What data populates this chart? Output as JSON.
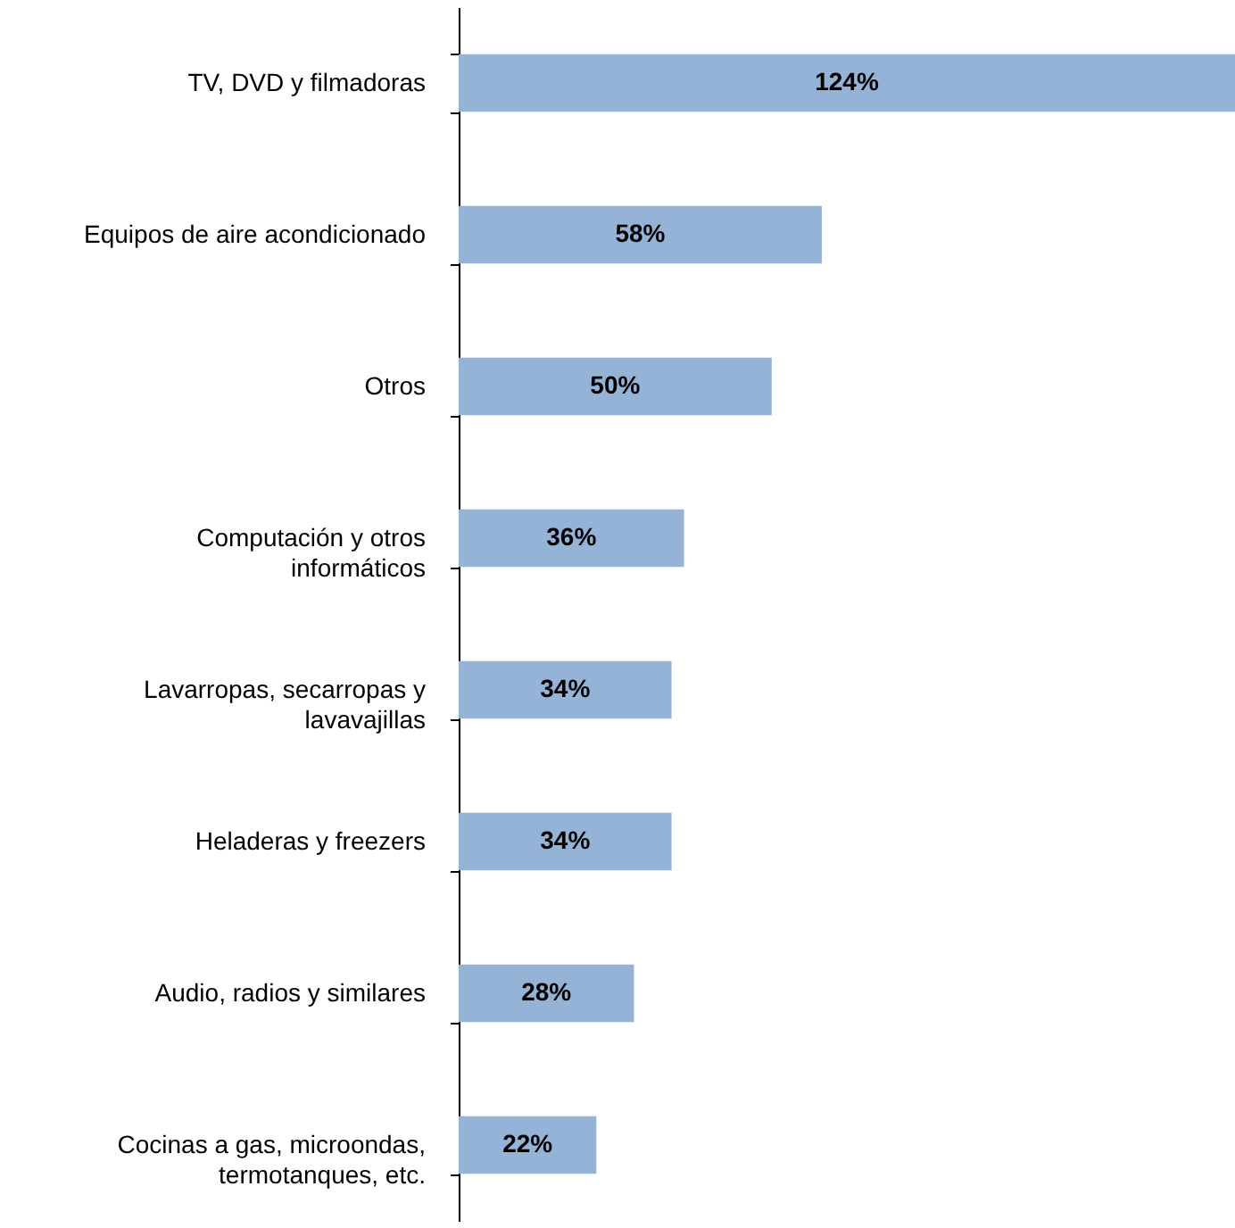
{
  "chart_data": {
    "type": "bar",
    "orientation": "horizontal",
    "categories": [
      "TV, DVD y filmadoras",
      "Equipos de aire acondicionado",
      "Otros",
      "Computación y otros informáticos",
      "Lavarropas, secarropas y lavavajillas",
      "Heladeras y freezers",
      "Audio, radios y similares",
      "Cocinas a gas, microondas, termotanques, etc."
    ],
    "values": [
      124,
      58,
      50,
      36,
      34,
      34,
      28,
      22
    ],
    "value_labels": [
      "124%",
      "58%",
      "50%",
      "36%",
      "34%",
      "34%",
      "28%",
      "22%"
    ],
    "color": "#95b3d7"
  }
}
